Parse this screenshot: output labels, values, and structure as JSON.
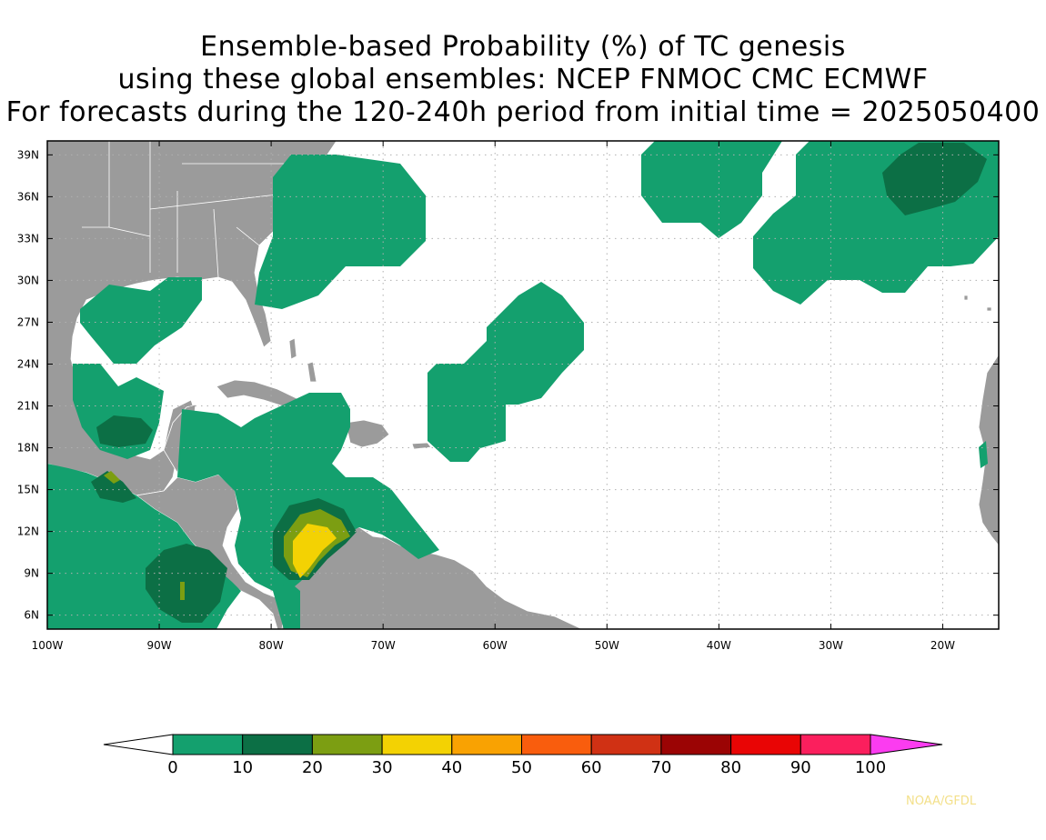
{
  "title": {
    "line1": "Ensemble-based Probability (%) of TC genesis",
    "line2": "using these global ensembles:   NCEP FNMOC CMC ECMWF",
    "line3": "For forecasts during the 120-240h period from initial time = 2025050400"
  },
  "map": {
    "lat_labels": [
      "39N",
      "36N",
      "33N",
      "30N",
      "27N",
      "24N",
      "21N",
      "18N",
      "15N",
      "12N",
      "9N",
      "6N"
    ],
    "lon_labels": [
      "100W",
      "90W",
      "80W",
      "70W",
      "60W",
      "50W",
      "40W",
      "30W",
      "20W"
    ],
    "colors": {
      "land": "#9b9b9b",
      "ocean": "#ffffff",
      "border": "#ffffff",
      "grid": "#b0b0b0"
    }
  },
  "colorbar": {
    "labels": [
      "0",
      "10",
      "20",
      "30",
      "40",
      "50",
      "60",
      "70",
      "80",
      "90",
      "100"
    ],
    "colors": [
      "#14a06e",
      "#0c6f45",
      "#7c9e12",
      "#f3d203",
      "#f9a202",
      "#f95d0d",
      "#d03114",
      "#9b0404",
      "#e90505",
      "#fb1f5d"
    ],
    "under_color": "#ffffff",
    "over_color": "#fb3cf0"
  },
  "credit": "NOAA/GFDL"
}
